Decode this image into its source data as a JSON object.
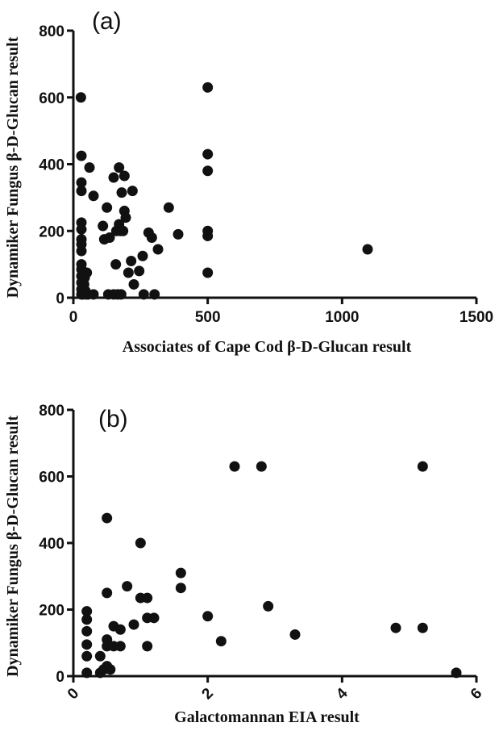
{
  "chart_data": [
    {
      "type": "scatter",
      "panel_label": "(a)",
      "title": "",
      "xlabel": "Associates of Cape Cod β-D-Glucan result",
      "ylabel": "Dynamiker Fungus β-D-Glucan result",
      "xlim": [
        0,
        1500
      ],
      "ylim": [
        0,
        800
      ],
      "xticks": [
        0,
        500,
        1000,
        1500
      ],
      "yticks": [
        0,
        200,
        400,
        600,
        800
      ],
      "xtick_labels": [
        "0",
        "500",
        "1000",
        "1500"
      ],
      "ytick_labels": [
        "0",
        "200",
        "400",
        "600",
        "800"
      ],
      "grid": false,
      "marker_color": "#111111",
      "points": [
        {
          "x": 28,
          "y": 600
        },
        {
          "x": 30,
          "y": 425
        },
        {
          "x": 30,
          "y": 345
        },
        {
          "x": 30,
          "y": 320
        },
        {
          "x": 30,
          "y": 225
        },
        {
          "x": 30,
          "y": 205
        },
        {
          "x": 30,
          "y": 175
        },
        {
          "x": 30,
          "y": 160
        },
        {
          "x": 30,
          "y": 140
        },
        {
          "x": 30,
          "y": 100
        },
        {
          "x": 30,
          "y": 85
        },
        {
          "x": 30,
          "y": 65
        },
        {
          "x": 30,
          "y": 45
        },
        {
          "x": 30,
          "y": 25
        },
        {
          "x": 30,
          "y": 10
        },
        {
          "x": 35,
          "y": 10
        },
        {
          "x": 40,
          "y": 40
        },
        {
          "x": 42,
          "y": 60
        },
        {
          "x": 45,
          "y": 20
        },
        {
          "x": 48,
          "y": 10
        },
        {
          "x": 50,
          "y": 75
        },
        {
          "x": 55,
          "y": 10
        },
        {
          "x": 60,
          "y": 390
        },
        {
          "x": 75,
          "y": 305
        },
        {
          "x": 75,
          "y": 10
        },
        {
          "x": 110,
          "y": 215
        },
        {
          "x": 115,
          "y": 175
        },
        {
          "x": 125,
          "y": 270
        },
        {
          "x": 130,
          "y": 10
        },
        {
          "x": 135,
          "y": 180
        },
        {
          "x": 150,
          "y": 360
        },
        {
          "x": 150,
          "y": 10
        },
        {
          "x": 158,
          "y": 100
        },
        {
          "x": 160,
          "y": 200
        },
        {
          "x": 165,
          "y": 10
        },
        {
          "x": 170,
          "y": 390
        },
        {
          "x": 170,
          "y": 220
        },
        {
          "x": 175,
          "y": 200
        },
        {
          "x": 178,
          "y": 10
        },
        {
          "x": 180,
          "y": 315
        },
        {
          "x": 185,
          "y": 200
        },
        {
          "x": 190,
          "y": 365
        },
        {
          "x": 190,
          "y": 260
        },
        {
          "x": 195,
          "y": 240
        },
        {
          "x": 205,
          "y": 75
        },
        {
          "x": 215,
          "y": 110
        },
        {
          "x": 220,
          "y": 320
        },
        {
          "x": 225,
          "y": 40
        },
        {
          "x": 245,
          "y": 80
        },
        {
          "x": 258,
          "y": 125
        },
        {
          "x": 262,
          "y": 10
        },
        {
          "x": 280,
          "y": 195
        },
        {
          "x": 292,
          "y": 180
        },
        {
          "x": 302,
          "y": 10
        },
        {
          "x": 315,
          "y": 145
        },
        {
          "x": 355,
          "y": 270
        },
        {
          "x": 390,
          "y": 190
        },
        {
          "x": 500,
          "y": 630
        },
        {
          "x": 500,
          "y": 430
        },
        {
          "x": 500,
          "y": 380
        },
        {
          "x": 500,
          "y": 200
        },
        {
          "x": 500,
          "y": 185
        },
        {
          "x": 500,
          "y": 75
        },
        {
          "x": 1095,
          "y": 145
        }
      ]
    },
    {
      "type": "scatter",
      "panel_label": "(b)",
      "title": "",
      "xlabel": "Galactomannan EIA result",
      "ylabel": "Dynamiker Fungus β-D-Glucan result",
      "xlim": [
        0,
        6
      ],
      "ylim": [
        0,
        800
      ],
      "xticks": [
        0,
        2,
        4,
        6
      ],
      "yticks": [
        0,
        200,
        400,
        600,
        800
      ],
      "xtick_labels": [
        "0",
        "2",
        "4",
        "6"
      ],
      "ytick_labels": [
        "0",
        "200",
        "400",
        "600",
        "800"
      ],
      "xtick_label_rotation": -45,
      "grid": false,
      "marker_color": "#111111",
      "points": [
        {
          "x": 0.2,
          "y": 195
        },
        {
          "x": 0.2,
          "y": 170
        },
        {
          "x": 0.2,
          "y": 135
        },
        {
          "x": 0.2,
          "y": 95
        },
        {
          "x": 0.2,
          "y": 60
        },
        {
          "x": 0.2,
          "y": 10
        },
        {
          "x": 0.4,
          "y": 60
        },
        {
          "x": 0.4,
          "y": 10
        },
        {
          "x": 0.45,
          "y": 20
        },
        {
          "x": 0.5,
          "y": 475
        },
        {
          "x": 0.5,
          "y": 250
        },
        {
          "x": 0.5,
          "y": 110
        },
        {
          "x": 0.5,
          "y": 90
        },
        {
          "x": 0.5,
          "y": 30
        },
        {
          "x": 0.55,
          "y": 20
        },
        {
          "x": 0.6,
          "y": 150
        },
        {
          "x": 0.6,
          "y": 90
        },
        {
          "x": 0.7,
          "y": 140
        },
        {
          "x": 0.7,
          "y": 90
        },
        {
          "x": 0.8,
          "y": 270
        },
        {
          "x": 0.9,
          "y": 155
        },
        {
          "x": 1.0,
          "y": 400
        },
        {
          "x": 1.0,
          "y": 235
        },
        {
          "x": 1.1,
          "y": 235
        },
        {
          "x": 1.1,
          "y": 175
        },
        {
          "x": 1.1,
          "y": 90
        },
        {
          "x": 1.2,
          "y": 175
        },
        {
          "x": 1.6,
          "y": 310
        },
        {
          "x": 1.6,
          "y": 265
        },
        {
          "x": 2.0,
          "y": 180
        },
        {
          "x": 2.2,
          "y": 105
        },
        {
          "x": 2.4,
          "y": 630
        },
        {
          "x": 2.8,
          "y": 630
        },
        {
          "x": 2.9,
          "y": 210
        },
        {
          "x": 3.3,
          "y": 125
        },
        {
          "x": 4.8,
          "y": 145
        },
        {
          "x": 5.2,
          "y": 630
        },
        {
          "x": 5.2,
          "y": 145
        },
        {
          "x": 5.7,
          "y": 10
        }
      ]
    }
  ]
}
